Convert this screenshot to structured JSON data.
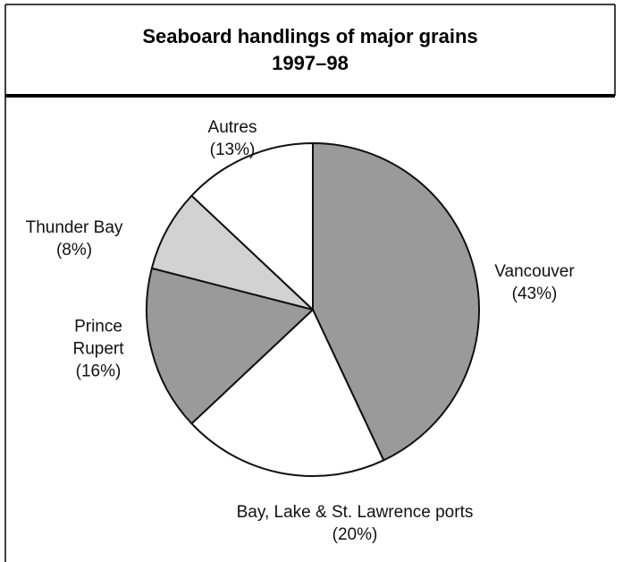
{
  "chart_data": {
    "type": "pie",
    "title": "Seaboard handlings of major grains",
    "subtitle": "1997–98",
    "categories": [
      "Vancouver",
      "Bay, Lake & St. Lawrence ports",
      "Prince Rupert",
      "Thunder Bay",
      "Autres"
    ],
    "values": [
      43,
      20,
      16,
      8,
      13
    ],
    "value_labels": [
      "(43%)",
      "(20%)",
      "(16%)",
      "(8%)",
      "(13%)"
    ],
    "colors": [
      "#9a9a9a",
      "#ffffff",
      "#9a9a9a",
      "#d2d2d2",
      "#ffffff"
    ]
  }
}
